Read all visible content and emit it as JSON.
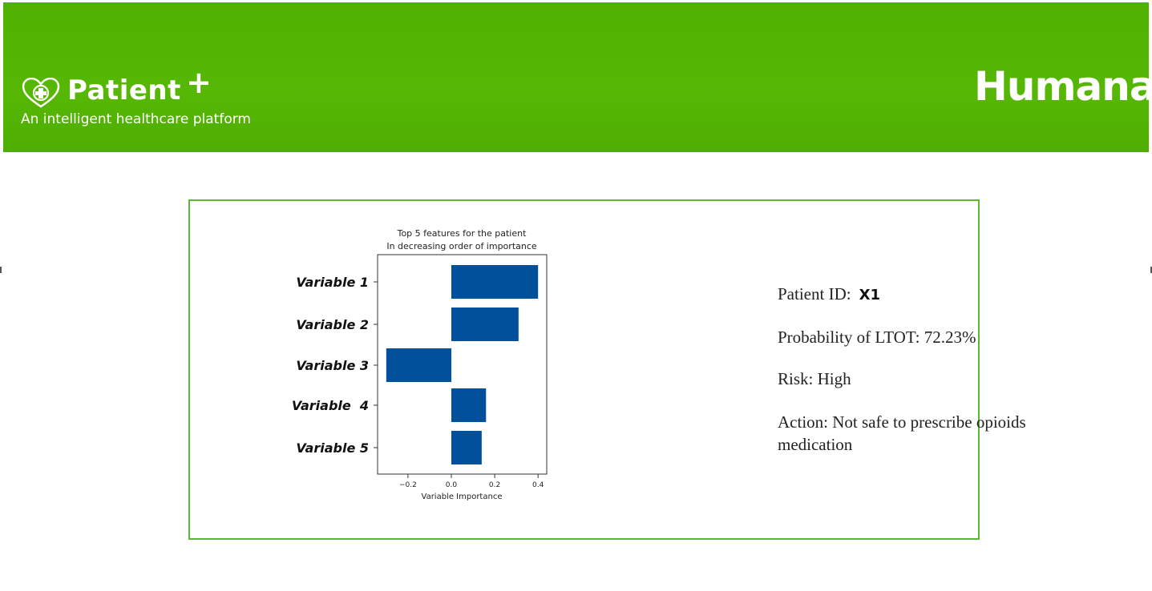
{
  "header": {
    "app_name": "Patient",
    "app_plus": "+",
    "tagline": "An intelligent healthcare platform",
    "brand": "Humana",
    "logo_icon": "heart-cross-icon",
    "color": "#52b402"
  },
  "chart_data": {
    "type": "bar",
    "orientation": "horizontal",
    "title": "Top 5 features for the patient",
    "subtitle": "In decreasing order of importance",
    "xlabel": "Variable Importance",
    "ylabel": "",
    "categories": [
      "Variable 1",
      "Variable 2",
      "Variable 3",
      "Variable  4",
      "Variable 5"
    ],
    "values": [
      0.4,
      0.31,
      -0.3,
      0.16,
      0.14
    ],
    "xlim": [
      -0.34,
      0.44
    ],
    "xticks": [
      -0.2,
      0.0,
      0.2,
      0.4
    ],
    "xtick_labels": [
      "−0.2",
      "0.0",
      "0.2",
      "0.4"
    ],
    "bar_color": "#00509b",
    "grid": false
  },
  "patient": {
    "id_label": "Patient ID:",
    "id_value": "X1",
    "probability": "Probability of LTOT: 72.23%",
    "risk": "Risk: High",
    "action": "Action: Not safe to prescribe opioids medication"
  }
}
